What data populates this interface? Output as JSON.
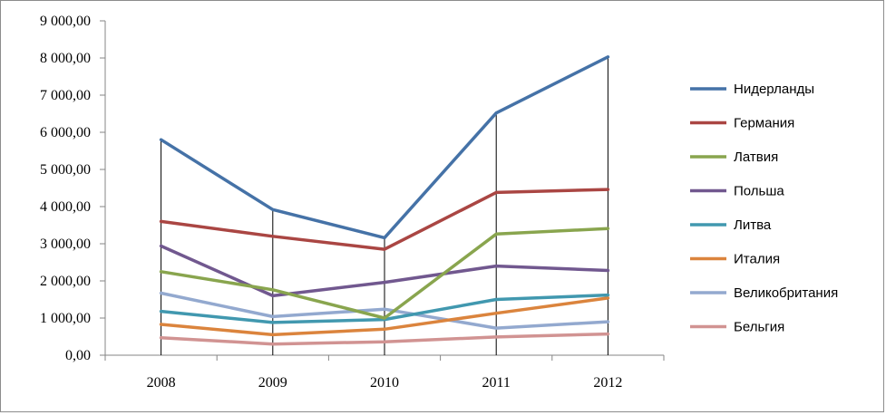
{
  "chart_data": {
    "type": "line",
    "title": "",
    "xlabel": "",
    "ylabel": "",
    "x": [
      "2008",
      "2009",
      "2010",
      "2011",
      "2012"
    ],
    "ylim": [
      0,
      9000
    ],
    "y_ticks": [
      "0,00",
      "1 000,00",
      "2 000,00",
      "3 000,00",
      "4 000,00",
      "5 000,00",
      "6 000,00",
      "7 000,00",
      "8 000,00",
      "9 000,00"
    ],
    "grid": false,
    "drop_lines": true,
    "legend_position": "right",
    "series": [
      {
        "name": "Нидерланды",
        "color": "#4572A7",
        "values": [
          5800,
          3920,
          3160,
          6520,
          8030
        ]
      },
      {
        "name": "Германия",
        "color": "#AA4643",
        "values": [
          3600,
          3200,
          2850,
          4380,
          4460
        ]
      },
      {
        "name": "Латвия",
        "color": "#89A54E",
        "values": [
          2250,
          1760,
          1000,
          3260,
          3410
        ]
      },
      {
        "name": "Польша",
        "color": "#71588F",
        "values": [
          2940,
          1600,
          1960,
          2400,
          2280
        ]
      },
      {
        "name": "Литва",
        "color": "#4198AF",
        "values": [
          1180,
          880,
          960,
          1500,
          1620
        ]
      },
      {
        "name": "Италия",
        "color": "#DB843D",
        "values": [
          830,
          550,
          700,
          1130,
          1540
        ]
      },
      {
        "name": "Великобритания",
        "color": "#93A9CF",
        "values": [
          1670,
          1040,
          1240,
          730,
          900
        ]
      },
      {
        "name": "Бельгия",
        "color": "#D19392",
        "values": [
          470,
          300,
          360,
          490,
          570
        ]
      }
    ]
  }
}
